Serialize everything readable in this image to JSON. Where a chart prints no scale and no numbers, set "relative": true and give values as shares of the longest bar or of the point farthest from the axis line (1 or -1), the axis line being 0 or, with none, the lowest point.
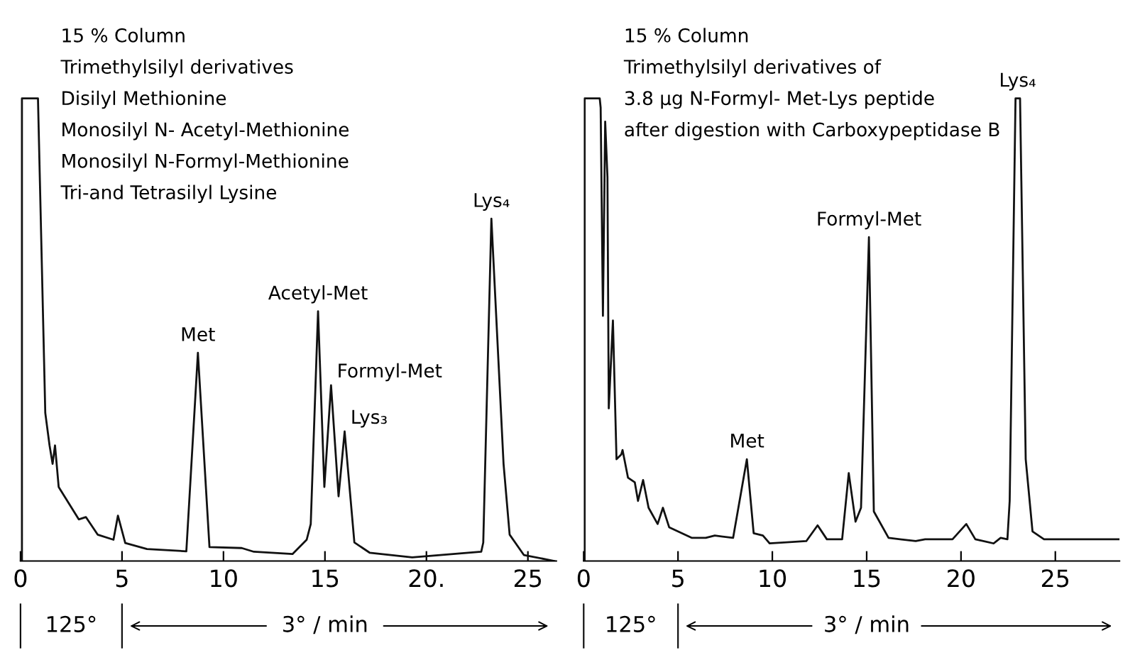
{
  "chart_data": [
    {
      "type": "line",
      "relative": true,
      "xlim": [
        0,
        26.4
      ],
      "xticks": [
        0,
        5,
        10,
        15,
        {
          "value": 20,
          "label": "20."
        },
        25
      ],
      "tick_labels": "x",
      "series": [
        {
          "color": "#111111",
          "x": [
            0.07,
            0.07,
            0.86,
            1.22,
            1.43,
            1.58,
            1.7,
            1.88,
            2.87,
            3.22,
            3.8,
            4.58,
            4.8,
            5.16,
            6.23,
            8.17,
            8.74,
            9.31,
            10.9,
            11.5,
            13.4,
            14.1,
            14.3,
            14.66,
            14.97,
            15.3,
            15.67,
            15.97,
            16.45,
            17.2,
            19.3,
            22.7,
            22.8,
            23.2,
            23.8,
            24.1,
            24.8,
            26.3
          ],
          "values": [
            0,
            1,
            1,
            0.32,
            0.25,
            0.21,
            0.25,
            0.16,
            0.09,
            0.095,
            0.057,
            0.046,
            0.098,
            0.039,
            0.026,
            0.021,
            0.45,
            0.03,
            0.028,
            0.02,
            0.015,
            0.046,
            0.08,
            0.54,
            0.16,
            0.38,
            0.14,
            0.28,
            0.04,
            0.018,
            0.008,
            0.02,
            0.04,
            0.74,
            0.21,
            0.057,
            0.013,
            0.0
          ]
        }
      ],
      "annotations": [
        "15 % Column",
        "Trimethylsilyl derivatives",
        "Disilyl Methionine",
        "Monosilyl N- Acetyl-Methionine",
        "Monosilyl N-Formyl-Methionine",
        "Tri-and Tetrasilyl Lysine",
        {
          "text": "Met",
          "x": 8.74,
          "y": 0.45
        },
        {
          "text": "Acetyl-Met",
          "x": 14.66,
          "y": 0.54
        },
        {
          "text": "Formyl-Met",
          "x": 15.3,
          "y": 0.38
        },
        {
          "text": "Lys₃",
          "x": 15.97,
          "y": 0.28
        },
        {
          "text": "Lys₄",
          "x": 23.2,
          "y": 0.74
        },
        "125°",
        "3° / min"
      ]
    },
    {
      "type": "line",
      "relative": true,
      "xlim": [
        0,
        28.4
      ],
      "xticks": [
        0,
        5,
        10,
        15,
        20,
        25
      ],
      "tick_labels": "x",
      "series": [
        {
          "color": "#111111",
          "x": [
            0.05,
            0.05,
            0.85,
            0.9,
            1.02,
            1.14,
            1.26,
            1.33,
            1.55,
            1.74,
            1.99,
            2.06,
            2.35,
            2.71,
            2.88,
            3.15,
            3.44,
            3.92,
            4.2,
            4.53,
            5.74,
            6.47,
            6.95,
            7.92,
            8.65,
            9.01,
            9.5,
            9.86,
            11.8,
            12.4,
            12.89,
            13.7,
            14.05,
            14.41,
            14.7,
            15.12,
            15.38,
            16.16,
            17.6,
            18.1,
            19.55,
            20.28,
            20.76,
            21.73,
            22.1,
            22.46,
            22.58,
            22.89,
            23.13,
            23.43,
            23.79,
            24.4,
            28.4
          ],
          "values": [
            0,
            1,
            1,
            0.98,
            0.53,
            0.95,
            0.83,
            0.33,
            0.52,
            0.22,
            0.23,
            0.24,
            0.18,
            0.17,
            0.13,
            0.175,
            0.115,
            0.08,
            0.115,
            0.073,
            0.05,
            0.05,
            0.055,
            0.05,
            0.22,
            0.06,
            0.055,
            0.038,
            0.043,
            0.077,
            0.047,
            0.047,
            0.19,
            0.085,
            0.115,
            0.7,
            0.107,
            0.05,
            0.043,
            0.047,
            0.047,
            0.08,
            0.047,
            0.038,
            0.05,
            0.047,
            0.13,
            1.0,
            1.0,
            0.22,
            0.064,
            0.047,
            0.047
          ]
        }
      ],
      "annotations": [
        "15 % Column",
        "Trimethylsilyl derivatives of",
        "3.8 μg N-Formyl- Met-Lys peptide",
        "after digestion with Carboxypeptidase B",
        {
          "text": "Met",
          "x": 8.65,
          "y": 0.22
        },
        {
          "text": "Formyl-Met",
          "x": 15.12,
          "y": 0.7
        },
        {
          "text": "Lys₄",
          "x": 23.0,
          "y": 1.0
        },
        "125°",
        "3° / min"
      ]
    }
  ]
}
